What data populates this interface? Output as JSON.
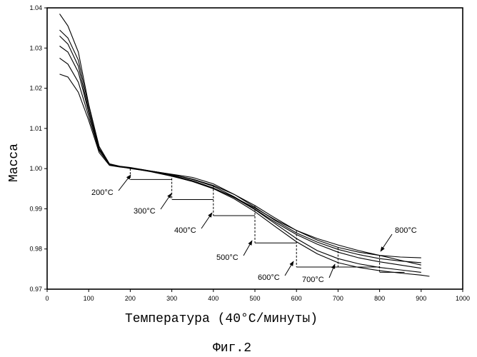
{
  "chart_data": {
    "type": "line",
    "xlabel": "Температура (40°C/минуты)",
    "ylabel": "Масса",
    "caption": "Фиг.2",
    "xlim": [
      0,
      1000
    ],
    "ylim": [
      0.97,
      1.04
    ],
    "x_ticks": [
      "0",
      "100",
      "200",
      "300",
      "400",
      "500",
      "600",
      "700",
      "800",
      "900",
      "1000"
    ],
    "y_ticks": [
      "0.97",
      "0.98",
      "0.99",
      "1.00",
      "1.01",
      "1.02",
      "1.03",
      "1.04"
    ],
    "grid": false,
    "series": [
      {
        "label": "200°C",
        "x": [
          30,
          50,
          75,
          100,
          125,
          150,
          175,
          190,
          200,
          230,
          260,
          300,
          350,
          400,
          450,
          500,
          550,
          600,
          650,
          700,
          750,
          800,
          850,
          900
        ],
        "y": [
          1.0385,
          1.0355,
          1.029,
          1.016,
          1.0055,
          1.001,
          1.0005,
          1.0002,
          1.0,
          0.9996,
          0.9992,
          0.9985,
          0.9974,
          0.9958,
          0.9936,
          0.9908,
          0.9876,
          0.9846,
          0.9822,
          0.9804,
          0.9792,
          0.9784,
          0.978,
          0.9778
        ]
      },
      {
        "label": "300°C",
        "x": [
          30,
          50,
          75,
          100,
          125,
          150,
          175,
          200,
          250,
          300,
          350,
          400,
          450,
          500,
          550,
          600,
          650,
          700,
          750,
          800,
          850,
          900
        ],
        "y": [
          1.0345,
          1.0325,
          1.027,
          1.0155,
          1.0055,
          1.0012,
          1.0006,
          1.0003,
          0.9994,
          0.9986,
          0.9978,
          0.9962,
          0.9936,
          0.9904,
          0.987,
          0.984,
          0.9817,
          0.9799,
          0.9786,
          0.9776,
          0.977,
          0.9766
        ]
      },
      {
        "label": "400°C",
        "x": [
          30,
          50,
          75,
          100,
          125,
          150,
          175,
          200,
          250,
          300,
          350,
          400,
          450,
          500,
          550,
          600,
          650,
          700,
          750,
          800,
          850,
          900
        ],
        "y": [
          1.033,
          1.031,
          1.0255,
          1.0145,
          1.005,
          1.001,
          1.0005,
          1.0002,
          0.9993,
          0.9983,
          0.997,
          0.9952,
          0.9928,
          0.9898,
          0.9862,
          0.9826,
          0.9796,
          0.9776,
          0.9763,
          0.9754,
          0.9748,
          0.9742
        ]
      },
      {
        "label": "500°C",
        "x": [
          30,
          50,
          75,
          100,
          125,
          150,
          175,
          200,
          250,
          300,
          350,
          400,
          450,
          500,
          550,
          600,
          650,
          700,
          750,
          800,
          850,
          900
        ],
        "y": [
          1.0305,
          1.029,
          1.024,
          1.014,
          1.0048,
          1.001,
          1.0005,
          1.0002,
          0.9994,
          0.9985,
          0.9973,
          0.9956,
          0.993,
          0.9899,
          0.9866,
          0.9836,
          0.9812,
          0.9792,
          0.9778,
          0.9768,
          0.976,
          0.9752
        ]
      },
      {
        "label": "600°C",
        "x": [
          30,
          50,
          75,
          100,
          125,
          150,
          175,
          200,
          250,
          300,
          350,
          400,
          450,
          500,
          550,
          600,
          650,
          700,
          750,
          800,
          850,
          900,
          920
        ],
        "y": [
          1.0275,
          1.026,
          1.0215,
          1.013,
          1.0045,
          1.001,
          1.0005,
          1.0002,
          0.9993,
          0.9982,
          0.9968,
          0.995,
          0.9925,
          0.9893,
          0.9855,
          0.9818,
          0.9788,
          0.9766,
          0.9754,
          0.9746,
          0.974,
          0.9735,
          0.9732
        ]
      },
      {
        "label": "700°C",
        "x": [
          30,
          50,
          75,
          100,
          125,
          150,
          175,
          200,
          250,
          300,
          350,
          400,
          450,
          500,
          550,
          600,
          650,
          700,
          750,
          800,
          850,
          900
        ],
        "y": [
          1.0235,
          1.0228,
          1.019,
          1.012,
          1.004,
          1.0008,
          1.0004,
          1.0001,
          0.9992,
          0.9981,
          0.9968,
          0.9951,
          0.9929,
          0.9902,
          0.9872,
          0.9846,
          0.9826,
          0.981,
          0.9796,
          0.9784,
          0.9772,
          0.976
        ]
      }
    ],
    "hold_annotations": [
      {
        "label": "200°C",
        "at": 200,
        "level": 0.9973,
        "end": 300
      },
      {
        "label": "300°C",
        "at": 300,
        "level": 0.9923,
        "end": 400
      },
      {
        "label": "400°C",
        "at": 400,
        "level": 0.9883,
        "end": 500
      },
      {
        "label": "500°C",
        "at": 500,
        "level": 0.9815,
        "end": 600
      },
      {
        "label": "600°C",
        "at": 600,
        "level": 0.9755,
        "end": 700
      },
      {
        "label": "700°C",
        "at": 700,
        "level": 0.9755,
        "end": 800
      },
      {
        "label": "800°C",
        "at": 800,
        "level": 0.9742,
        "end": 860
      }
    ]
  }
}
